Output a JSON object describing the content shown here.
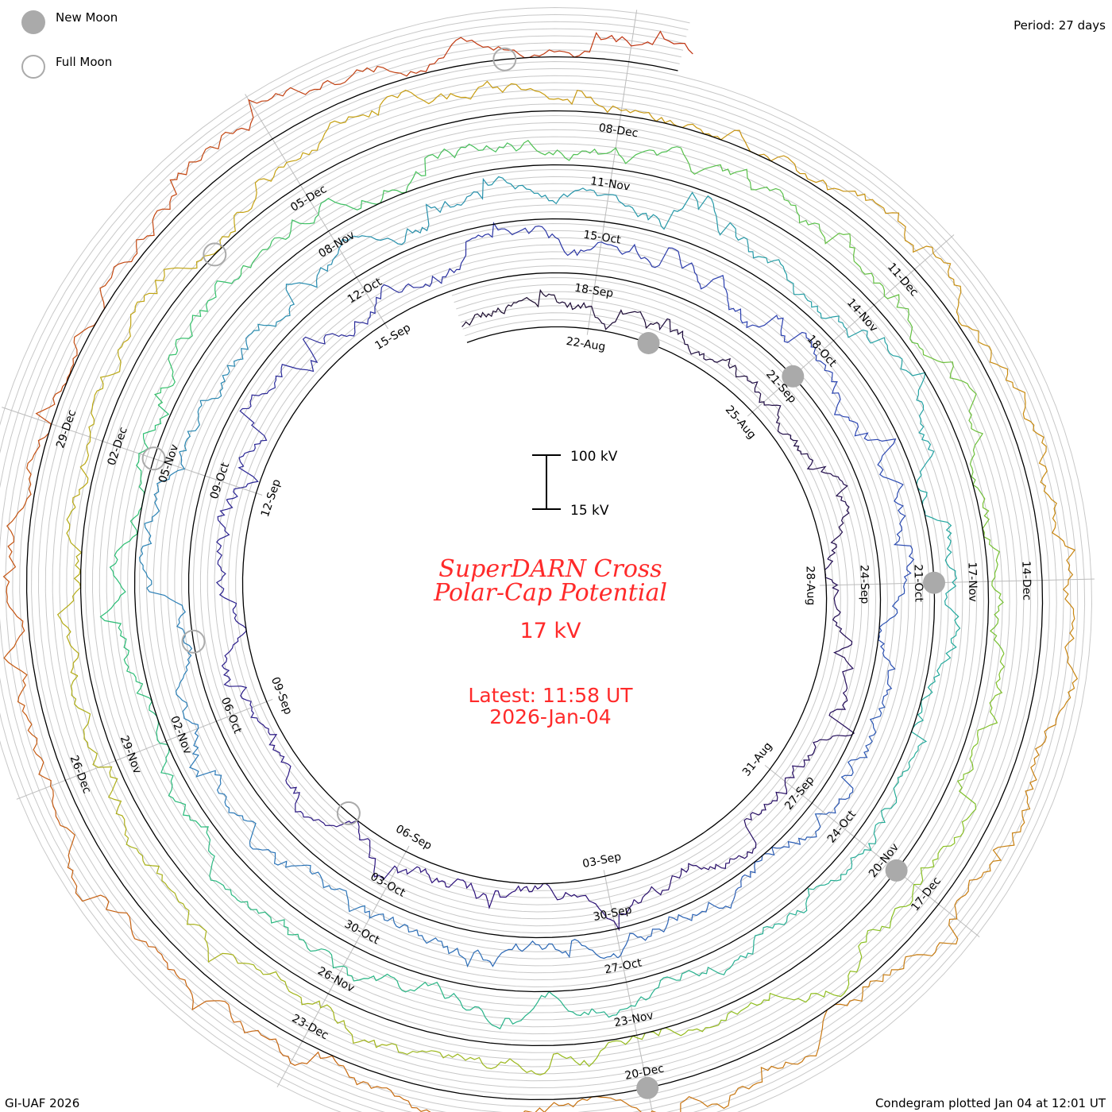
{
  "legend": {
    "new_moon_label": "New Moon",
    "full_moon_label": "Full Moon",
    "new_moon_color": "#aaaaaa",
    "full_moon_color": "#aaaaaa"
  },
  "period_label": "Period: 27 days",
  "credit": "GI-UAF 2026",
  "plotted": "Condegram plotted Jan 04 at 12:01 UT",
  "center": {
    "title_line1": "SuperDARN Cross",
    "title_line2": "Polar-Cap Potential",
    "current_value": "17 kV",
    "latest_line1": "Latest: 11:58 UT",
    "latest_line2": "2026-Jan-04",
    "title_color": "#ff2a2a"
  },
  "scale_bar": {
    "top_label": "100 kV",
    "bottom_label": "15 kV"
  },
  "chart_data": {
    "type": "line",
    "subtype": "spiral-condegram",
    "period_days": 27,
    "value_range_kv": [
      15,
      100
    ],
    "start_date": "2025-08-20",
    "end_date": "2026-01-04",
    "date_labels": [
      "22-Aug",
      "25-Aug",
      "28-Aug",
      "31-Aug",
      "03-Sep",
      "06-Sep",
      "09-Sep",
      "12-Sep",
      "15-Sep",
      "18-Sep",
      "21-Sep",
      "24-Sep",
      "27-Sep",
      "30-Sep",
      "03-Oct",
      "06-Oct",
      "09-Oct",
      "12-Oct",
      "15-Oct",
      "18-Oct",
      "21-Oct",
      "24-Oct",
      "27-Oct",
      "30-Oct",
      "02-Nov",
      "05-Nov",
      "08-Nov",
      "11-Nov",
      "14-Nov",
      "17-Nov",
      "20-Nov",
      "23-Nov",
      "26-Nov",
      "29-Nov",
      "02-Dec",
      "05-Dec",
      "08-Dec",
      "11-Dec",
      "14-Dec",
      "17-Dec",
      "20-Dec",
      "23-Dec",
      "26-Dec",
      "29-Dec"
    ],
    "new_moons": [
      "2025-08-23",
      "2025-09-21",
      "2025-10-21",
      "2025-11-20",
      "2025-12-20"
    ],
    "full_moons": [
      "2025-09-07",
      "2025-10-07",
      "2025-11-05",
      "2025-12-04",
      "2026-01-03"
    ],
    "series_colors": [
      "#1a0a2e",
      "#2b0f7a",
      "#2a3fb0",
      "#2a7ab8",
      "#22a8a0",
      "#2cc070",
      "#8cc020",
      "#c8a010",
      "#c87010",
      "#c03010"
    ]
  }
}
